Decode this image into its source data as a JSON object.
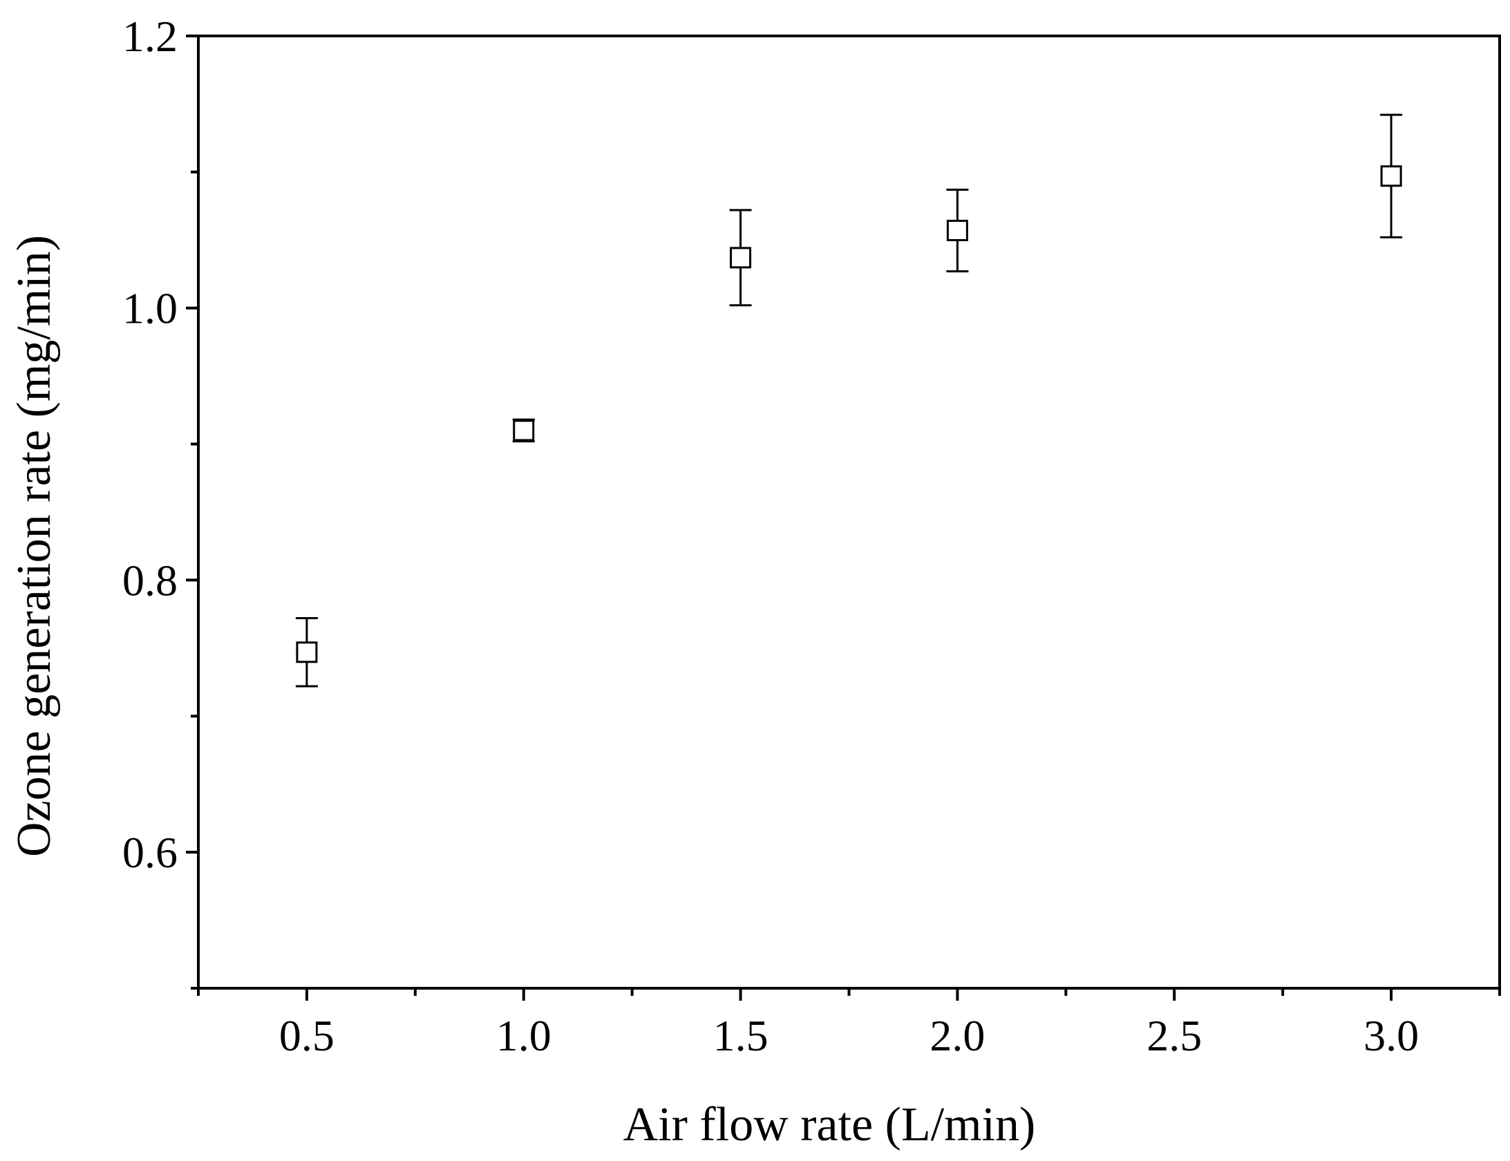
{
  "chart_data": {
    "type": "scatter",
    "title": "",
    "xlabel": "Air flow rate (L/min)",
    "ylabel": "Ozone generation rate (mg/min)",
    "xlim": [
      0.25,
      3.25
    ],
    "ylim": [
      0.5,
      1.2
    ],
    "x_ticks": [
      0.5,
      1.0,
      1.5,
      2.0,
      2.5,
      3.0
    ],
    "x_tick_labels": [
      "0.5",
      "1.0",
      "1.5",
      "2.0",
      "2.5",
      "3.0"
    ],
    "y_ticks": [
      0.6,
      0.8,
      1.0,
      1.2
    ],
    "y_tick_labels": [
      "0.6",
      "0.8",
      "1.0",
      "1.2"
    ],
    "grid": false,
    "marker": "open-square",
    "series": [
      {
        "x": [
          0.5,
          1.0,
          1.5,
          2.0,
          3.0
        ],
        "y": [
          0.747,
          0.91,
          1.037,
          1.057,
          1.097
        ],
        "err": [
          0.025,
          0.008,
          0.035,
          0.03,
          0.045
        ]
      }
    ]
  }
}
